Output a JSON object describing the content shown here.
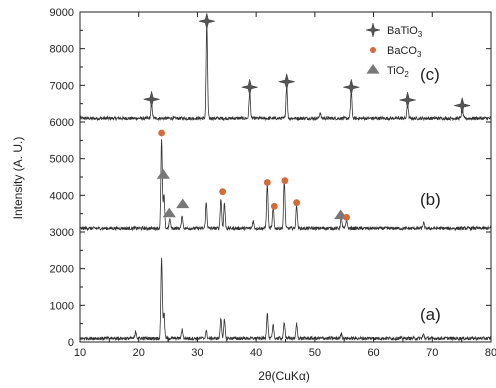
{
  "chart_data": {
    "type": "line",
    "title": "",
    "xlabel": "2θ(CuKα)",
    "ylabel": "Intensity (A. U.)",
    "xlim": [
      10,
      80
    ],
    "ylim": [
      0,
      9000
    ],
    "x_ticks": [
      "10",
      "20",
      "30",
      "40",
      "50",
      "60",
      "70",
      "80"
    ],
    "y_ticks": [
      "0",
      "1000",
      "2000",
      "3000",
      "4000",
      "5000",
      "6000",
      "7000",
      "8000",
      "9000"
    ],
    "grid": false,
    "legend_position": "top-right",
    "legend": [
      {
        "marker": "star",
        "label": "BaTiO",
        "sub": "3"
      },
      {
        "marker": "circle",
        "label": "BaCO",
        "sub": "3"
      },
      {
        "marker": "triangle",
        "label": "TiO",
        "sub": "2"
      }
    ],
    "series": [
      {
        "label": "(c)",
        "baseline": 6100,
        "peaks": [
          [
            22.2,
            400
          ],
          [
            31.6,
            2550
          ],
          [
            38.9,
            700
          ],
          [
            45.2,
            900
          ],
          [
            50.9,
            150
          ],
          [
            56.2,
            750
          ],
          [
            65.8,
            400
          ],
          [
            75.1,
            300
          ]
        ],
        "markers": [
          {
            "type": "star",
            "x": 22.2,
            "y": 6620
          },
          {
            "type": "star",
            "x": 31.6,
            "y": 8750
          },
          {
            "type": "star",
            "x": 38.9,
            "y": 6950
          },
          {
            "type": "star",
            "x": 45.2,
            "y": 7100
          },
          {
            "type": "star",
            "x": 56.2,
            "y": 6950
          },
          {
            "type": "star",
            "x": 65.8,
            "y": 6600
          },
          {
            "type": "star",
            "x": 75.1,
            "y": 6450
          }
        ]
      },
      {
        "label": "(b)",
        "baseline": 3100,
        "peaks": [
          [
            23.9,
            2400
          ],
          [
            24.3,
            900
          ],
          [
            25.3,
            250
          ],
          [
            27.4,
            350
          ],
          [
            31.5,
            700
          ],
          [
            34.0,
            800
          ],
          [
            34.6,
            700
          ],
          [
            39.5,
            200
          ],
          [
            41.9,
            1200
          ],
          [
            42.9,
            550
          ],
          [
            44.8,
            1300
          ],
          [
            46.9,
            650
          ],
          [
            54.5,
            300
          ],
          [
            55.4,
            250
          ],
          [
            68.5,
            150
          ]
        ],
        "markers": [
          {
            "type": "circle",
            "x": 23.9,
            "y": 5700
          },
          {
            "type": "triangle",
            "x": 24.2,
            "y": 4550
          },
          {
            "type": "triangle",
            "x": 25.2,
            "y": 3500
          },
          {
            "type": "triangle",
            "x": 27.5,
            "y": 3750
          },
          {
            "type": "circle",
            "x": 34.3,
            "y": 4100
          },
          {
            "type": "circle",
            "x": 41.9,
            "y": 4350
          },
          {
            "type": "circle",
            "x": 43.1,
            "y": 3700
          },
          {
            "type": "circle",
            "x": 44.9,
            "y": 4400
          },
          {
            "type": "circle",
            "x": 46.9,
            "y": 3800
          },
          {
            "type": "triangle",
            "x": 54.4,
            "y": 3450
          },
          {
            "type": "circle",
            "x": 55.4,
            "y": 3400
          }
        ]
      },
      {
        "label": "(a)",
        "baseline": 100,
        "peaks": [
          [
            19.5,
            180
          ],
          [
            23.9,
            2200
          ],
          [
            24.3,
            700
          ],
          [
            27.4,
            250
          ],
          [
            31.5,
            200
          ],
          [
            34.0,
            550
          ],
          [
            34.6,
            500
          ],
          [
            41.9,
            700
          ],
          [
            42.9,
            350
          ],
          [
            44.8,
            450
          ],
          [
            46.9,
            400
          ],
          [
            54.5,
            150
          ],
          [
            68.5,
            100
          ]
        ],
        "markers": []
      }
    ]
  }
}
